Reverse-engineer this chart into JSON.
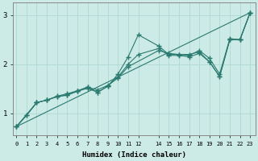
{
  "xlabel": "Humidex (Indice chaleur)",
  "background_color": "#cceae6",
  "grid_color": "#b0d8d4",
  "line_color": "#2a7a70",
  "xlim": [
    -0.3,
    23.5
  ],
  "ylim": [
    0.55,
    3.25
  ],
  "xticks": [
    0,
    1,
    2,
    3,
    4,
    5,
    6,
    7,
    8,
    9,
    10,
    11,
    12,
    14,
    15,
    16,
    17,
    18,
    19,
    20,
    21,
    22,
    23
  ],
  "yticks": [
    1,
    2,
    3
  ],
  "line1_x": [
    0,
    1,
    2,
    3,
    4,
    5,
    6,
    7,
    8,
    9,
    10,
    11,
    12,
    14,
    15,
    16,
    17,
    18,
    19,
    20,
    21,
    22,
    23
  ],
  "line1_y": [
    0.73,
    0.96,
    1.22,
    1.27,
    1.34,
    1.38,
    1.45,
    1.51,
    1.43,
    1.55,
    1.8,
    2.15,
    2.6,
    2.37,
    2.2,
    2.2,
    2.2,
    2.25,
    2.05,
    1.75,
    2.5,
    2.5,
    3.05
  ],
  "line2_x": [
    0,
    2,
    3,
    4,
    5,
    6,
    7,
    8,
    9,
    10,
    11,
    14,
    15,
    16,
    17,
    18,
    19,
    20,
    21,
    22,
    23
  ],
  "line2_y": [
    0.73,
    1.22,
    1.27,
    1.35,
    1.4,
    1.46,
    1.53,
    1.48,
    1.57,
    1.72,
    1.95,
    2.28,
    2.22,
    2.2,
    2.18,
    2.28,
    2.12,
    1.8,
    2.52,
    2.5,
    3.05
  ],
  "line3_x": [
    0,
    23
  ],
  "line3_y": [
    0.73,
    3.05
  ],
  "line4_x": [
    0,
    1,
    2,
    3,
    4,
    5,
    6,
    7,
    8,
    9,
    10,
    11,
    12,
    14,
    15,
    16,
    17,
    18,
    19,
    20,
    21,
    22,
    23
  ],
  "line4_y": [
    0.73,
    0.96,
    1.22,
    1.27,
    1.34,
    1.37,
    1.45,
    1.54,
    1.43,
    1.56,
    1.74,
    2.0,
    2.2,
    2.32,
    2.18,
    2.18,
    2.15,
    2.22,
    2.05,
    1.75,
    2.5,
    2.5,
    3.05
  ]
}
